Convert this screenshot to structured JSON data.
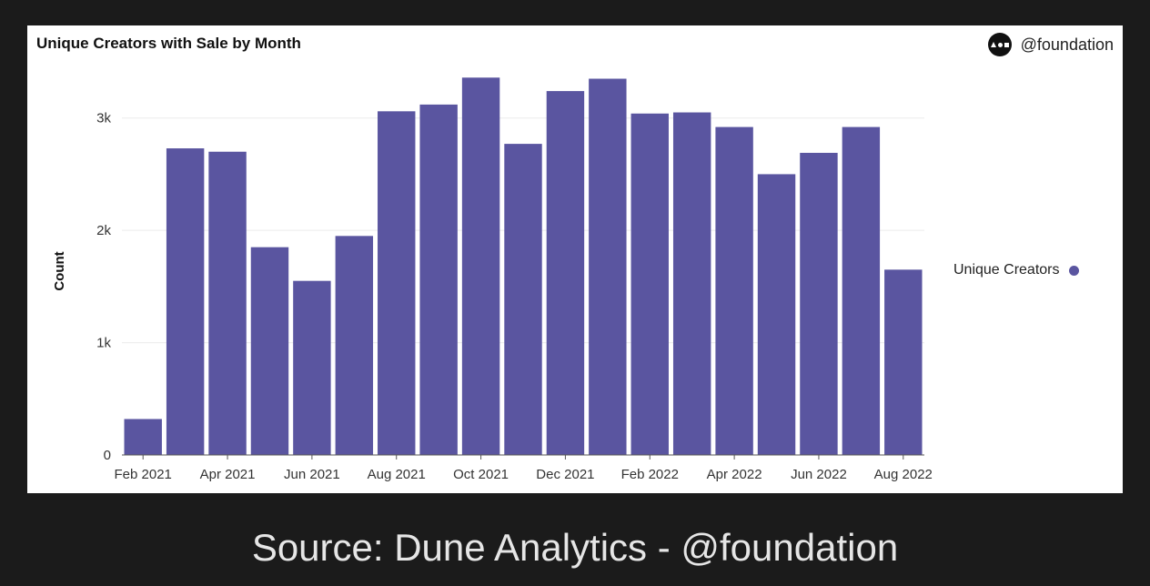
{
  "brand": {
    "handle": "@foundation",
    "logo_icon": "foundation-logo-icon"
  },
  "caption": "Source: Dune Analytics - @foundation",
  "colors": {
    "background": "#1b1b1b",
    "card": "#ffffff",
    "bar": "#5a55a0",
    "grid": "#ececec",
    "axis": "#555555",
    "caption": "#e6e6e6"
  },
  "chart_data": {
    "type": "bar",
    "title": "Unique Creators with Sale by Month",
    "xlabel": "",
    "ylabel": "Count",
    "ylim": [
      0,
      3500
    ],
    "yticks": [
      {
        "value": 0,
        "label": "0"
      },
      {
        "value": 1000,
        "label": "1k"
      },
      {
        "value": 2000,
        "label": "2k"
      },
      {
        "value": 3000,
        "label": "3k"
      }
    ],
    "grid": true,
    "legend_position": "right",
    "categories": [
      "Feb 2021",
      "Mar 2021",
      "Apr 2021",
      "May 2021",
      "Jun 2021",
      "Jul 2021",
      "Aug 2021",
      "Sep 2021",
      "Oct 2021",
      "Nov 2021",
      "Dec 2021",
      "Jan 2022",
      "Feb 2022",
      "Mar 2022",
      "Apr 2022",
      "May 2022",
      "Jun 2022",
      "Jul 2022",
      "Aug 2022"
    ],
    "xtick_labels": [
      "Feb 2021",
      "Apr 2021",
      "Jun 2021",
      "Aug 2021",
      "Oct 2021",
      "Dec 2021",
      "Feb 2022",
      "Apr 2022",
      "Jun 2022",
      "Aug 2022"
    ],
    "series": [
      {
        "name": "Unique Creators",
        "color": "#5a55a0",
        "values": [
          320,
          2730,
          2700,
          1850,
          1550,
          1950,
          3060,
          3120,
          3360,
          2770,
          3240,
          3350,
          3040,
          3050,
          2920,
          2500,
          2690,
          2920,
          1650
        ]
      }
    ]
  }
}
